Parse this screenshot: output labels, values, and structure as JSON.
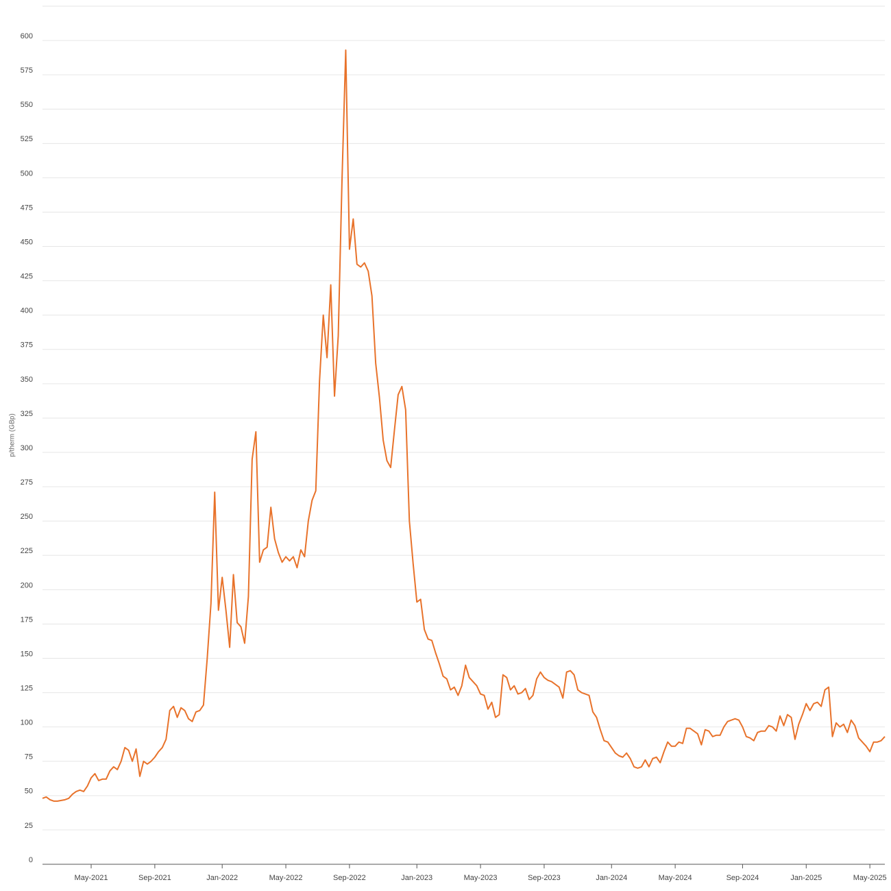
{
  "chart_data": {
    "type": "line",
    "y_label": "p/therm (GBp)",
    "categories": [
      null,
      null,
      null,
      null,
      null,
      null,
      null,
      null,
      null,
      null,
      null,
      null,
      null,
      "May-2021",
      null,
      null,
      null,
      null,
      null,
      null,
      null,
      null,
      null,
      null,
      null,
      null,
      null,
      null,
      null,
      null,
      "Sep-2021",
      null,
      null,
      null,
      null,
      null,
      null,
      null,
      null,
      null,
      null,
      null,
      null,
      null,
      null,
      null,
      null,
      null,
      "Jan-2022",
      null,
      null,
      null,
      null,
      null,
      null,
      null,
      null,
      null,
      null,
      null,
      null,
      null,
      null,
      null,
      null,
      "May-2022",
      null,
      null,
      null,
      null,
      null,
      null,
      null,
      null,
      null,
      null,
      null,
      null,
      null,
      null,
      null,
      null,
      "Sep-2022",
      null,
      null,
      null,
      null,
      null,
      null,
      null,
      null,
      null,
      null,
      null,
      null,
      null,
      null,
      null,
      null,
      null,
      "Jan-2023",
      null,
      null,
      null,
      null,
      null,
      null,
      null,
      null,
      null,
      null,
      null,
      null,
      null,
      null,
      null,
      null,
      "May-2023",
      null,
      null,
      null,
      null,
      null,
      null,
      null,
      null,
      null,
      null,
      null,
      null,
      null,
      null,
      null,
      null,
      "Sep-2023",
      null,
      null,
      null,
      null,
      null,
      null,
      null,
      null,
      null,
      null,
      null,
      null,
      null,
      null,
      null,
      null,
      null,
      "Jan-2024",
      null,
      null,
      null,
      null,
      null,
      null,
      null,
      null,
      null,
      null,
      null,
      null,
      null,
      null,
      null,
      null,
      "May-2024",
      null,
      null,
      null,
      null,
      null,
      null,
      null,
      null,
      null,
      null,
      null,
      null,
      null,
      null,
      null,
      null,
      null,
      "Sep-2024",
      null,
      null,
      null,
      null,
      null,
      null,
      null,
      null,
      null,
      null,
      null,
      null,
      null,
      null,
      null,
      null,
      "Jan-2025",
      null,
      null,
      null,
      null,
      null,
      null,
      null,
      null,
      null,
      null,
      null,
      null,
      null,
      null,
      null,
      null,
      "May-2025",
      null,
      null,
      null,
      null
    ],
    "values": [
      48,
      49,
      47,
      46,
      46,
      46.5,
      47,
      48,
      51,
      53,
      54,
      53,
      57,
      63,
      66,
      61,
      62,
      62,
      68,
      71,
      69,
      75,
      85,
      83,
      75,
      84,
      64,
      75,
      73,
      75,
      78,
      82,
      85,
      91,
      112,
      115,
      107,
      114,
      112,
      106,
      104,
      111,
      112,
      116,
      150,
      190,
      271,
      185,
      209,
      185,
      158,
      211,
      176,
      173,
      161,
      195,
      295,
      315,
      220,
      229,
      231,
      260,
      237,
      227,
      220,
      224,
      221,
      224,
      216,
      229,
      224,
      250,
      265,
      272,
      352,
      400,
      369,
      422,
      341,
      385,
      498,
      593,
      448,
      470,
      437,
      435,
      438,
      432,
      414,
      365,
      340,
      309,
      294,
      289,
      316,
      342,
      348,
      331,
      250,
      219,
      191,
      193,
      171,
      164,
      163,
      154,
      146,
      137,
      135,
      127,
      129,
      123,
      130,
      145,
      136,
      133,
      130,
      124,
      123,
      113,
      118,
      107,
      109,
      138,
      136,
      127,
      130,
      124,
      125,
      128,
      120,
      123,
      135,
      140,
      136,
      134,
      133,
      131,
      129,
      121,
      140,
      141,
      138,
      127,
      125,
      124,
      123,
      111,
      107,
      98,
      90,
      89,
      85,
      81,
      79,
      78,
      81,
      77,
      71,
      70,
      71,
      76,
      71,
      77,
      78,
      74,
      82,
      89,
      86,
      86,
      89,
      88,
      99,
      99,
      97,
      95,
      87,
      98,
      97,
      93,
      94,
      94,
      100,
      104,
      105,
      106,
      105,
      100,
      93,
      92,
      90,
      96,
      97,
      97,
      101,
      100,
      97,
      108,
      101,
      109,
      107,
      91,
      102,
      109,
      117,
      112,
      117,
      118,
      115,
      127,
      129,
      93,
      103,
      100,
      102,
      96,
      105,
      101,
      92,
      89,
      86,
      82,
      89,
      89,
      90,
      93
    ],
    "color": "#e8722a",
    "ylim": [
      0,
      625
    ],
    "yticks": [
      0,
      25,
      50,
      75,
      100,
      125,
      150,
      175,
      200,
      225,
      250,
      275,
      300,
      325,
      350,
      375,
      400,
      425,
      450,
      475,
      500,
      525,
      550,
      575,
      600
    ],
    "grid": true
  }
}
